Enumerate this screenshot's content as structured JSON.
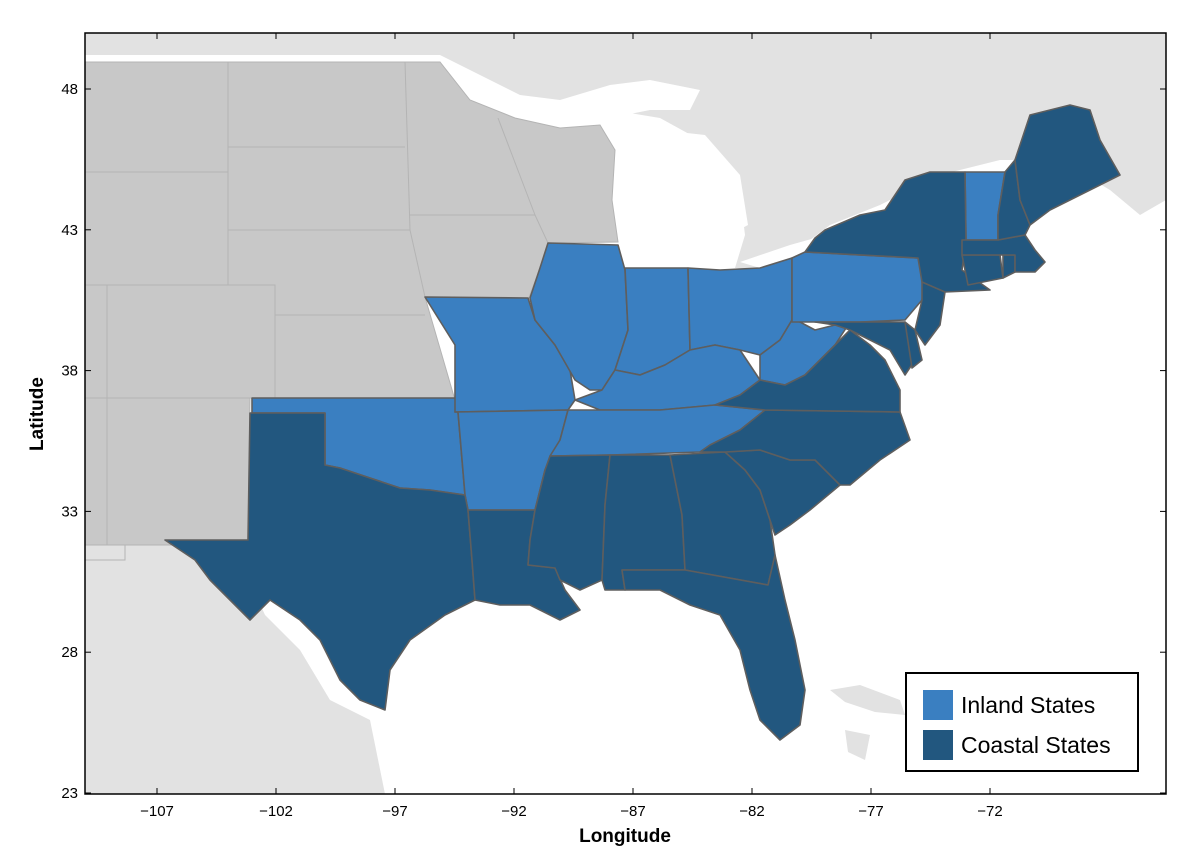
{
  "axes": {
    "xlabel": "Longitude",
    "ylabel": "Latitude",
    "x_ticks": [
      "−107",
      "−102",
      "−97",
      "−92",
      "−87",
      "−82",
      "−77",
      "−72"
    ],
    "y_ticks": [
      "48",
      "43",
      "38",
      "33",
      "28",
      "23"
    ]
  },
  "legend": {
    "items": [
      {
        "label": "Inland States",
        "color": "#3a7fc1"
      },
      {
        "label": "Coastal States",
        "color": "#22577f"
      }
    ]
  },
  "colors": {
    "inland": "#3a7fc1",
    "coastal": "#22577f",
    "other_states": "#c8c8c8",
    "land": "#e2e2e2",
    "water": "#ffffff"
  },
  "chart_data": {
    "type": "choropleth map",
    "x_range": [
      -110,
      -66
    ],
    "y_range": [
      23,
      50
    ],
    "inland_states": [
      "Oklahoma",
      "Missouri",
      "Arkansas",
      "Illinois",
      "Indiana",
      "Ohio",
      "Kentucky",
      "Tennessee",
      "West Virginia",
      "Pennsylvania",
      "Vermont"
    ],
    "coastal_states": [
      "Texas",
      "Louisiana",
      "Mississippi",
      "Alabama",
      "Georgia",
      "Florida",
      "South Carolina",
      "North Carolina",
      "Virginia",
      "Maryland",
      "Delaware",
      "New Jersey",
      "New York",
      "Connecticut",
      "Rhode Island",
      "Massachusetts",
      "New Hampshire",
      "Maine"
    ],
    "legend_position": "bottom-right"
  }
}
